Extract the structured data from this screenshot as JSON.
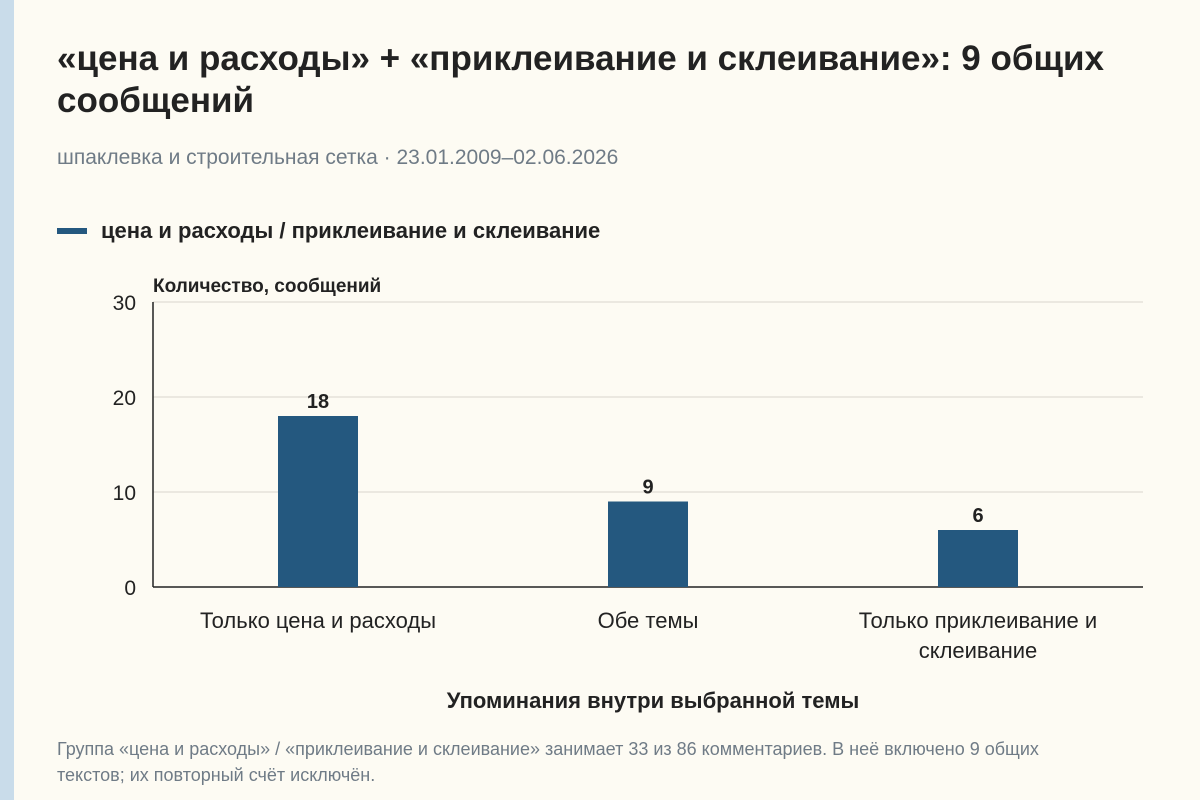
{
  "title": "«цена и расходы» + «приклеивание и склеивание»: 9 общих сообщений",
  "subtitle": "шпаклевка и строительная сетка · 23.01.2009–02.06.2026",
  "legend_label": "цена и расходы / приклеивание и склеивание",
  "note": "Группа «цена и расходы» / «приклеивание и склеивание» занимает 33 из 86 комментариев. В неё включено 9 общих текстов; их повторный счёт исключён.",
  "colors": {
    "bar": "#24587f",
    "background": "#fdfbf3",
    "accent_strip": "#c9dcea"
  },
  "chart_data": {
    "type": "bar",
    "categories": [
      "Только цена и расходы",
      "Обе темы",
      "Только приклеивание и склеивание"
    ],
    "series": [
      {
        "name": "цена и расходы / приклеивание и склеивание",
        "values": [
          18,
          9,
          6
        ]
      }
    ],
    "ylabel": "Количество, сообщений",
    "xlabel": "Упоминания внутри выбранной темы",
    "ylim": [
      0,
      30
    ],
    "yticks": [
      0,
      10,
      20,
      30
    ],
    "grid": true,
    "data_labels": true
  }
}
